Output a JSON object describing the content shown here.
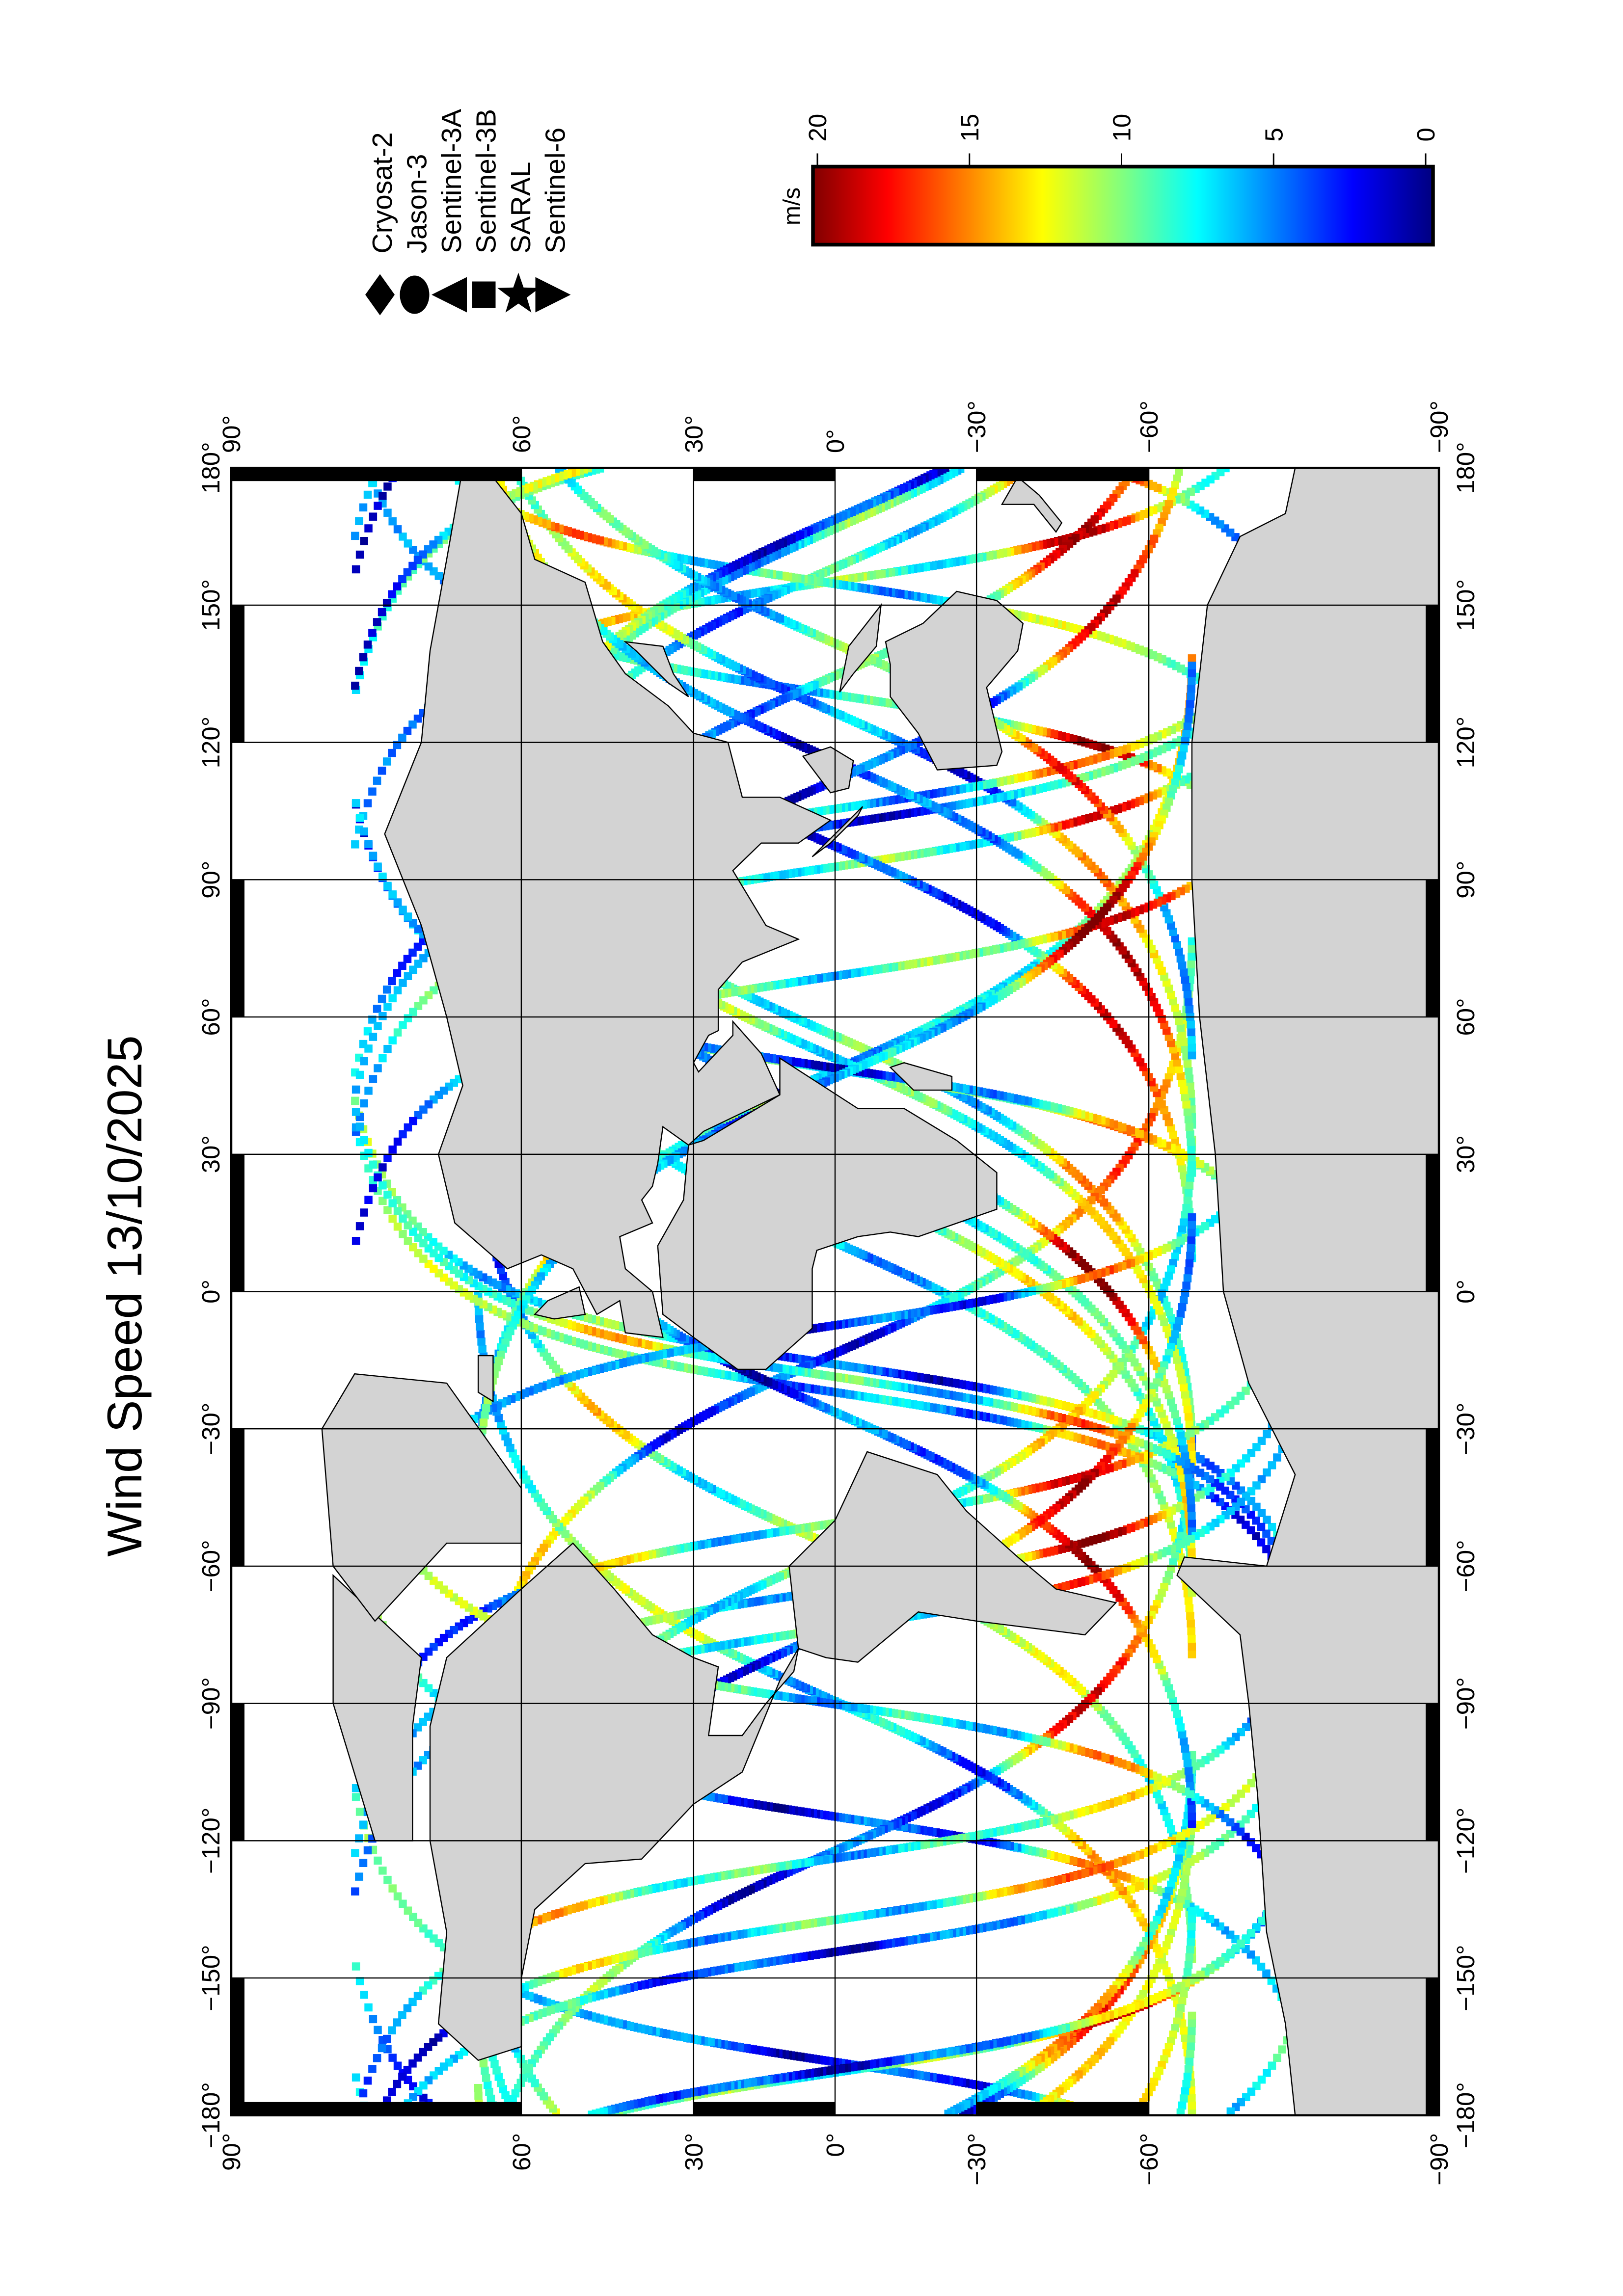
{
  "title": "Wind Speed 13/10/2025",
  "map": {
    "lat_ticks": [
      {
        "value": 90,
        "label": "90°"
      },
      {
        "value": 60,
        "label": "60°"
      },
      {
        "value": 30,
        "label": "30°"
      },
      {
        "value": 0,
        "label": "0°"
      },
      {
        "value": -30,
        "label": "−30°"
      },
      {
        "value": -60,
        "label": "−60°"
      },
      {
        "value": -90,
        "label": "−90°"
      }
    ],
    "lon_ticks": [
      {
        "value": -180,
        "label": "−180°"
      },
      {
        "value": -150,
        "label": "−150°"
      },
      {
        "value": -120,
        "label": "−120°"
      },
      {
        "value": -90,
        "label": "−90°"
      },
      {
        "value": -60,
        "label": "−60°"
      },
      {
        "value": -30,
        "label": "−30°"
      },
      {
        "value": 0,
        "label": "0°"
      },
      {
        "value": 30,
        "label": "30°"
      },
      {
        "value": 60,
        "label": "60°"
      },
      {
        "value": 90,
        "label": "90°"
      },
      {
        "value": 120,
        "label": "120°"
      },
      {
        "value": 150,
        "label": "150°"
      },
      {
        "value": 180,
        "label": "180°"
      }
    ],
    "land_color": "#d3d3d3",
    "ocean_color": "#ffffff",
    "grid": true,
    "orientation": "rotated 90° counter-clockwise"
  },
  "legend": {
    "satellites": [
      {
        "name": "Cryosat-2",
        "symbol": "diamond"
      },
      {
        "name": "Jason-3",
        "symbol": "circle"
      },
      {
        "name": "Sentinel-3A",
        "symbol": "triangle-left"
      },
      {
        "name": "Sentinel-3B",
        "symbol": "square"
      },
      {
        "name": "SARAL",
        "symbol": "star"
      },
      {
        "name": "Sentinel-6",
        "symbol": "triangle-right"
      }
    ]
  },
  "colorbar": {
    "label": "m/s",
    "range": [
      0,
      20
    ],
    "colormap": "jet",
    "ticks": [
      {
        "value": 20,
        "label": "20"
      },
      {
        "value": 15,
        "label": "15"
      },
      {
        "value": 10,
        "label": "10"
      },
      {
        "value": 5,
        "label": "5"
      },
      {
        "value": 0,
        "label": "0"
      }
    ]
  }
}
